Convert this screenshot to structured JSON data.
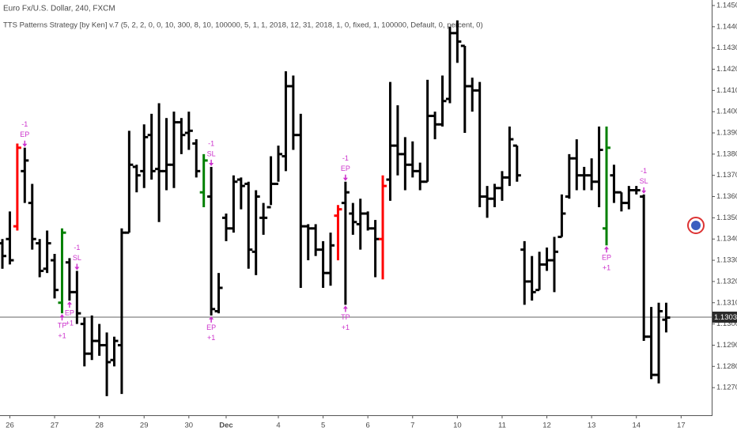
{
  "chart_data": {
    "type": "ohlc",
    "title": "Euro Fx/U.S. Dollar, 240, FXCM",
    "subtitle": "TTS Patterns Strategy [by Ken] v.7 (5, 2, 2, 0, 0, 10, 300, 8, 10, 100000, 5, 1, 1, 2018, 12, 31, 2018, 1, 0, fixed, 1, 100000, Default, 0, percent, 0)",
    "color": "#000000",
    "marker_color": "#cc33cc",
    "opens": [
      1.1338,
      1.134,
      1.1346,
      1.1372,
      1.1357,
      1.1338,
      1.1326,
      1.133,
      1.131,
      1.1329,
      1.1315,
      1.13,
      1.1286,
      1.1292,
      1.129,
      1.1283,
      1.129,
      1.1343,
      1.1374,
      1.1372,
      1.1389,
      1.1373,
      1.1372,
      1.1375,
      1.1395,
      1.139,
      1.1385,
      1.1362,
      1.136,
      1.1306,
      1.135,
      1.1345,
      1.1368,
      1.1366,
      1.1334,
      1.135,
      1.1355,
      1.1366,
      1.1379,
      1.1412,
      1.1389,
      1.1346,
      1.1345,
      1.1335,
      1.1324,
      1.1351,
      1.1357,
      1.1352,
      1.1347,
      1.1352,
      1.1345,
      1.134,
      1.1368,
      1.1384,
      1.138,
      1.1375,
      1.1372,
      1.1367,
      1.1398,
      1.1394,
      1.1406,
      1.1437,
      1.1431,
      1.1412,
      1.141,
      1.136,
      1.1359,
      1.1364,
      1.1369,
      1.1384,
      1.1335,
      1.132,
      1.1316,
      1.1328,
      1.133,
      1.1341,
      1.136,
      1.1378,
      1.137,
      1.137,
      1.1367,
      1.1345,
      1.137,
      1.1362,
      1.1357,
      1.1363,
      1.136,
      1.1294,
      1.1276,
      1.1302
    ],
    "highs": [
      1.134,
      1.1353,
      1.1385,
      1.1383,
      1.1366,
      1.134,
      1.1344,
      1.1333,
      1.1345,
      1.1331,
      1.1325,
      1.1303,
      1.1304,
      1.13,
      1.1296,
      1.1294,
      1.1345,
      1.1391,
      1.1375,
      1.1394,
      1.1399,
      1.1404,
      1.1397,
      1.14,
      1.1397,
      1.14,
      1.1387,
      1.138,
      1.1374,
      1.1324,
      1.1352,
      1.137,
      1.1369,
      1.1367,
      1.1363,
      1.1357,
      1.1379,
      1.1384,
      1.1419,
      1.1417,
      1.1399,
      1.1347,
      1.1347,
      1.1339,
      1.1343,
      1.1356,
      1.1367,
      1.1357,
      1.1359,
      1.1353,
      1.1349,
      1.137,
      1.1414,
      1.1403,
      1.1388,
      1.1386,
      1.1376,
      1.1415,
      1.14,
      1.1417,
      1.144,
      1.1443,
      1.1431,
      1.1416,
      1.1414,
      1.1365,
      1.1366,
      1.1372,
      1.1393,
      1.1384,
      1.1339,
      1.1332,
      1.1334,
      1.1336,
      1.1341,
      1.1361,
      1.138,
      1.1387,
      1.1374,
      1.1378,
      1.1393,
      1.1393,
      1.1375,
      1.1362,
      1.1365,
      1.1365,
      1.1361,
      1.1308,
      1.131,
      1.131
    ],
    "lows": [
      1.1326,
      1.1328,
      1.1344,
      1.1357,
      1.1335,
      1.1322,
      1.1324,
      1.1312,
      1.1305,
      1.1311,
      1.13,
      1.128,
      1.1283,
      1.1285,
      1.1266,
      1.128,
      1.1267,
      1.1343,
      1.1362,
      1.1364,
      1.1368,
      1.1348,
      1.1363,
      1.1364,
      1.138,
      1.1382,
      1.1369,
      1.1355,
      1.1304,
      1.1305,
      1.1339,
      1.1343,
      1.1354,
      1.1326,
      1.1323,
      1.1342,
      1.1356,
      1.1367,
      1.1372,
      1.1382,
      1.1317,
      1.133,
      1.1332,
      1.1317,
      1.1318,
      1.133,
      1.1309,
      1.1342,
      1.1335,
      1.1344,
      1.1322,
      1.1321,
      1.1358,
      1.137,
      1.1363,
      1.1369,
      1.1363,
      1.1367,
      1.1387,
      1.1393,
      1.1404,
      1.1423,
      1.139,
      1.14,
      1.1355,
      1.135,
      1.1355,
      1.1358,
      1.1365,
      1.1367,
      1.1309,
      1.1311,
      1.1316,
      1.1325,
      1.1315,
      1.1341,
      1.1359,
      1.1363,
      1.1363,
      1.1363,
      1.1355,
      1.1337,
      1.1357,
      1.1353,
      1.1354,
      1.1361,
      1.1292,
      1.1274,
      1.1272,
      1.1296
    ],
    "closes": [
      1.1332,
      1.133,
      1.1383,
      1.1377,
      1.134,
      1.1325,
      1.1338,
      1.1316,
      1.1343,
      1.1315,
      1.1305,
      1.1286,
      1.1292,
      1.129,
      1.1282,
      1.1292,
      1.1343,
      1.1375,
      1.137,
      1.1388,
      1.1372,
      1.1372,
      1.1375,
      1.1395,
      1.1389,
      1.1391,
      1.1372,
      1.1377,
      1.1307,
      1.1317,
      1.1345,
      1.1367,
      1.1365,
      1.1335,
      1.136,
      1.135,
      1.1366,
      1.138,
      1.1412,
      1.1389,
      1.1346,
      1.1345,
      1.1335,
      1.1324,
      1.1337,
      1.1354,
      1.1362,
      1.1348,
      1.1352,
      1.1345,
      1.134,
      1.1365,
      1.1384,
      1.138,
      1.1375,
      1.1372,
      1.1367,
      1.1398,
      1.1394,
      1.1405,
      1.1437,
      1.1433,
      1.1412,
      1.141,
      1.136,
      1.1359,
      1.1364,
      1.1369,
      1.1387,
      1.137,
      1.132,
      1.1315,
      1.1328,
      1.133,
      1.1334,
      1.1352,
      1.1378,
      1.137,
      1.137,
      1.1367,
      1.1382,
      1.1383,
      1.1362,
      1.1357,
      1.1363,
      1.1363,
      1.1294,
      1.1276,
      1.1306,
      1.1303
    ],
    "signal_bars": [
      {
        "x": 2,
        "color": "#ff0000"
      },
      {
        "x": 8,
        "color": "#008000"
      },
      {
        "x": 27,
        "color": "#008000"
      },
      {
        "x": 45,
        "color": "#ff0000"
      },
      {
        "x": 51,
        "color": "#ff0000"
      },
      {
        "x": 81,
        "color": "#008000"
      }
    ],
    "markers": [
      {
        "x": 3,
        "position": "above",
        "labels": [
          "-1",
          "EP"
        ]
      },
      {
        "x": 8,
        "position": "below",
        "labels": [
          "TP",
          "+1"
        ]
      },
      {
        "x": 9,
        "position": "below",
        "labels": [
          "EP",
          "+1"
        ]
      },
      {
        "x": 10,
        "position": "above",
        "labels": [
          "-1",
          "SL"
        ]
      },
      {
        "x": 28,
        "position": "above",
        "labels": [
          "-1",
          "SL"
        ]
      },
      {
        "x": 28,
        "position": "below",
        "labels": [
          "EP",
          "+1"
        ]
      },
      {
        "x": 46,
        "position": "above",
        "labels": [
          "-1",
          "EP"
        ]
      },
      {
        "x": 46,
        "position": "below",
        "labels": [
          "TP",
          "+1"
        ]
      },
      {
        "x": 81,
        "position": "below",
        "labels": [
          "EP",
          "+1"
        ]
      },
      {
        "x": 86,
        "position": "above",
        "labels": [
          "-1",
          "SL"
        ]
      }
    ],
    "last_price": 1.13032,
    "xlim": [
      -0.32,
      95.1
    ],
    "ylim": [
      1.1257,
      1.14526
    ],
    "xticks": [
      {
        "value": 1,
        "label": "26"
      },
      {
        "value": 7,
        "label": "27"
      },
      {
        "value": 13,
        "label": "28"
      },
      {
        "value": 19,
        "label": "29"
      },
      {
        "value": 25,
        "label": "30"
      },
      {
        "value": 30,
        "label": "Dec"
      },
      {
        "value": 37,
        "label": "4"
      },
      {
        "value": 43,
        "label": "5"
      },
      {
        "value": 49,
        "label": "6"
      },
      {
        "value": 55,
        "label": "7"
      },
      {
        "value": 61,
        "label": "10"
      },
      {
        "value": 67,
        "label": "11"
      },
      {
        "value": 73,
        "label": "12"
      },
      {
        "value": 79,
        "label": "13"
      },
      {
        "value": 85,
        "label": "14"
      },
      {
        "value": 91,
        "label": "17"
      }
    ],
    "yticks": [
      {
        "value": 1.127,
        "label": "1.12700"
      },
      {
        "value": 1.128,
        "label": "1.12800"
      },
      {
        "value": 1.129,
        "label": "1.12900"
      },
      {
        "value": 1.13,
        "label": "1.13000"
      },
      {
        "value": 1.131,
        "label": "1.13100"
      },
      {
        "value": 1.132,
        "label": "1.13200"
      },
      {
        "value": 1.133,
        "label": "1.13300"
      },
      {
        "value": 1.134,
        "label": "1.13400"
      },
      {
        "value": 1.135,
        "label": "1.13500"
      },
      {
        "value": 1.136,
        "label": "1.13600"
      },
      {
        "value": 1.137,
        "label": "1.13700"
      },
      {
        "value": 1.138,
        "label": "1.13800"
      },
      {
        "value": 1.139,
        "label": "1.13900"
      },
      {
        "value": 1.14,
        "label": "1.14000"
      },
      {
        "value": 1.141,
        "label": "1.14100"
      },
      {
        "value": 1.142,
        "label": "1.14200"
      },
      {
        "value": 1.143,
        "label": "1.14300"
      },
      {
        "value": 1.144,
        "label": "1.14400"
      },
      {
        "value": 1.145,
        "label": "1.14500"
      }
    ]
  }
}
